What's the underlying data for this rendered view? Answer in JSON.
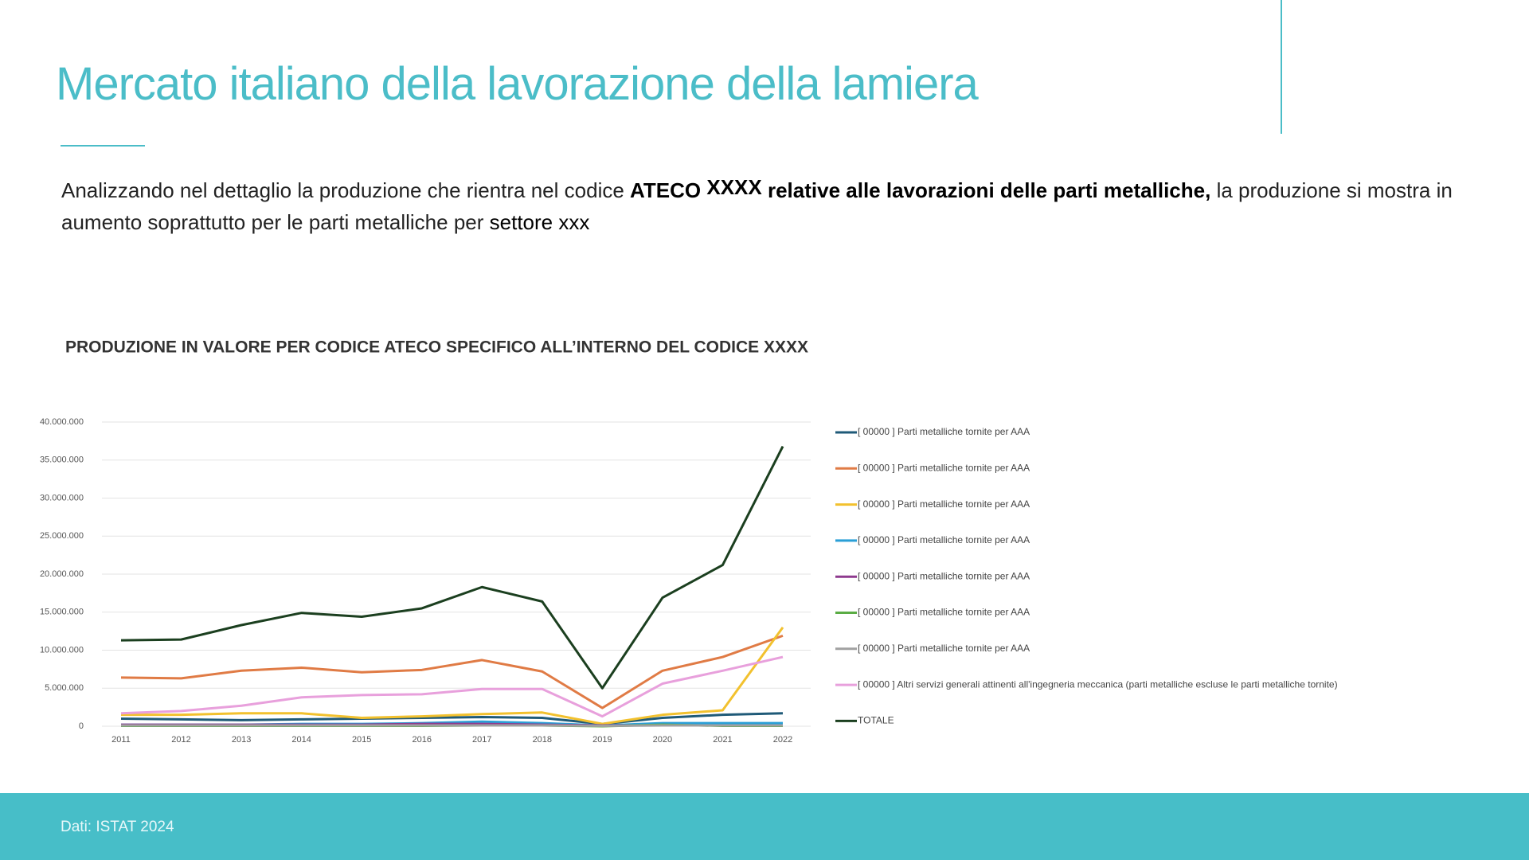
{
  "header": {
    "title": "Mercato italiano della lavorazione della lamiera"
  },
  "intro": {
    "parts": [
      "Analizzando nel dettaglio la produzione che rientra nel codice",
      "ATECO",
      "XXXX",
      "relative alle lavorazioni delle parti metalliche,",
      "la produzione si mostra in aumento soprattutto per le parti metalliche per",
      "settore xxx"
    ]
  },
  "footer": {
    "source": "Dati: ISTAT 2024"
  },
  "chart_data": {
    "type": "line",
    "title": "PRODUZIONE IN VALORE PER CODICE ATECO SPECIFICO ALL’INTERNO DEL CODICE XXXX",
    "categories": [
      "2011",
      "2012",
      "2013",
      "2014",
      "2015",
      "2016",
      "2017",
      "2018",
      "2019",
      "2020",
      "2021",
      "2022"
    ],
    "ylim": [
      0,
      40000000
    ],
    "yticks": [
      0,
      {
        "value": 5000000,
        "label": "5.000.000"
      },
      {
        "value": 10000000,
        "label": "10.000.000"
      },
      {
        "value": 15000000,
        "label": "15.000.000"
      },
      {
        "value": 20000000,
        "label": "20.000.000"
      },
      {
        "value": 25000000,
        "label": "25.000.000"
      },
      {
        "value": 30000000,
        "label": "30.000.000"
      },
      {
        "value": 35000000,
        "label": "35.000.000"
      },
      {
        "value": 40000000,
        "label": "40.000.000"
      }
    ],
    "grid": true,
    "series": [
      {
        "name": "[ 00000 ] Parti metalliche tornite per AAA",
        "color": "#1f5a78",
        "values": [
          1000000,
          900000,
          800000,
          900000,
          1000000,
          1100000,
          1200000,
          1100000,
          300000,
          1100000,
          1500000,
          1700000
        ]
      },
      {
        "name": "[ 00000 ] Parti metalliche tornite per AAA",
        "color": "#e07b45",
        "values": [
          6400000,
          6300000,
          7300000,
          7700000,
          7100000,
          7400000,
          8700000,
          7200000,
          2400000,
          7300000,
          9100000,
          11900000
        ]
      },
      {
        "name": "[ 00000 ] Parti metalliche tornite per AAA",
        "color": "#f2c12e",
        "values": [
          1500000,
          1500000,
          1700000,
          1700000,
          1100000,
          1300000,
          1600000,
          1800000,
          300000,
          1500000,
          2100000,
          13000000
        ]
      },
      {
        "name": "[ 00000 ] Parti metalliche tornite per AAA",
        "color": "#2a9fd6",
        "values": [
          200000,
          200000,
          200000,
          300000,
          300000,
          400000,
          600000,
          400000,
          100000,
          400000,
          400000,
          400000
        ]
      },
      {
        "name": "[ 00000 ] Parti metalliche tornite per AAA",
        "color": "#8e3a8e",
        "values": [
          200000,
          200000,
          200000,
          200000,
          200000,
          300000,
          300000,
          200000,
          100000,
          100000,
          100000,
          100000
        ]
      },
      {
        "name": "[ 00000 ] Parti metalliche tornite per AAA",
        "color": "#5aac44",
        "values": [
          50000,
          50000,
          50000,
          50000,
          50000,
          50000,
          100000,
          100000,
          0,
          200000,
          50000,
          50000
        ]
      },
      {
        "name": "[ 00000 ] Parti metalliche tornite per AAA",
        "color": "#a0a0a0",
        "values": [
          100000,
          100000,
          100000,
          100000,
          100000,
          100000,
          100000,
          100000,
          50000,
          100000,
          100000,
          100000
        ]
      },
      {
        "name": "[ 00000 ] Altri servizi generali attinenti all'ingegneria meccanica (parti metalliche escluse le parti metalliche tornite)",
        "color": "#e8a0dc",
        "values": [
          1700000,
          2000000,
          2700000,
          3800000,
          4100000,
          4200000,
          4900000,
          4900000,
          1300000,
          5600000,
          7300000,
          9100000
        ]
      },
      {
        "name": "TOTALE",
        "color": "#1b3f1f",
        "values": [
          11300000,
          11400000,
          13300000,
          14900000,
          14400000,
          15500000,
          18300000,
          16400000,
          5000000,
          16900000,
          21200000,
          36800000
        ]
      }
    ]
  }
}
